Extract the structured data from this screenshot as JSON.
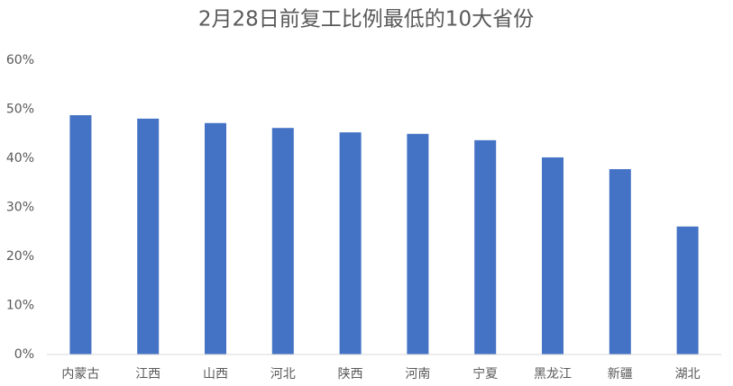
{
  "chart_data": {
    "type": "bar",
    "title": "2月28日前复工比例最低的10大省份",
    "categories": [
      "内蒙古",
      "江西",
      "山西",
      "河北",
      "陕西",
      "河南",
      "宁夏",
      "黑龙江",
      "新疆",
      "湖北"
    ],
    "values": [
      48.8,
      48.1,
      47.2,
      46.2,
      45.3,
      45.0,
      43.7,
      40.2,
      37.8,
      26.1
    ],
    "color": "#4472c4",
    "ylim": [
      0,
      60
    ],
    "yticks": [
      {
        "value": 0,
        "label": "0%"
      },
      {
        "value": 10,
        "label": "10%"
      },
      {
        "value": 20,
        "label": "20%"
      },
      {
        "value": 30,
        "label": "30%"
      },
      {
        "value": 40,
        "label": "40%"
      },
      {
        "value": 50,
        "label": "50%"
      },
      {
        "value": 60,
        "label": "60%"
      }
    ],
    "grid": false
  }
}
